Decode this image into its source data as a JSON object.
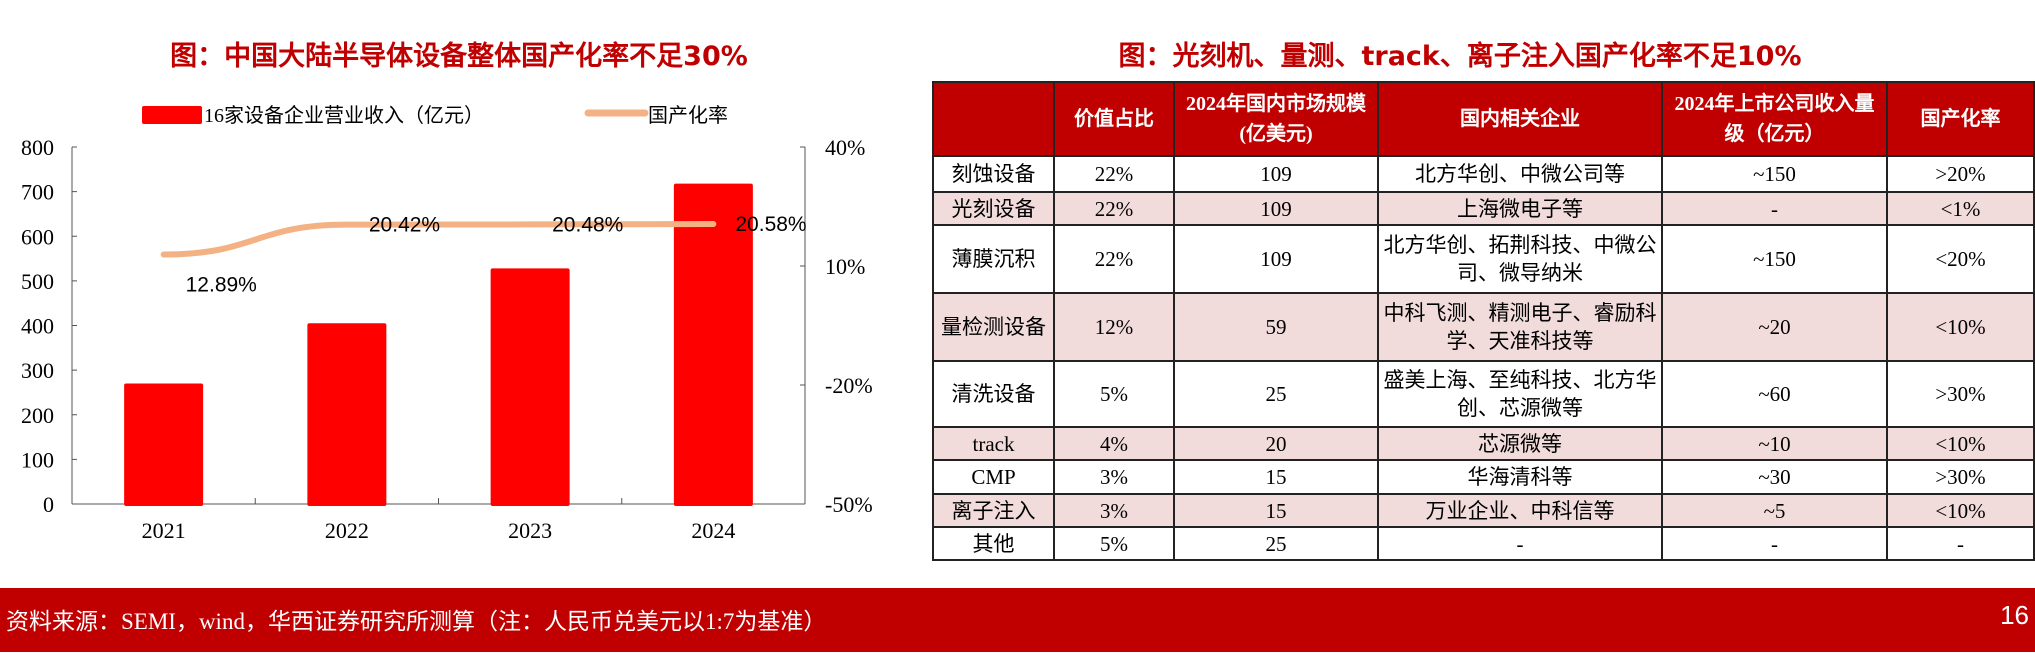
{
  "left": {
    "title": "图：中国大陆半导体设备整体国产化率不足30%"
  },
  "right": {
    "title": "图：光刻机、量测、track、离子注入国产化率不足10%"
  },
  "chart_data": {
    "type": "bar+line",
    "categories": [
      "2021",
      "2022",
      "2023",
      "2024"
    ],
    "series": [
      {
        "name": "16家设备企业营业收入（亿元）",
        "type": "bar",
        "axis": "left",
        "values": [
          270,
          405,
          528,
          718
        ],
        "color": "#ff0000"
      },
      {
        "name": "国产化率",
        "type": "line",
        "axis": "right",
        "values": [
          12.89,
          20.42,
          20.48,
          20.58
        ],
        "labels": [
          "12.89%",
          "20.42%",
          "20.48%",
          "20.58%"
        ],
        "color": "#f4b183"
      }
    ],
    "ylim_left": [
      0,
      800
    ],
    "yticks_left": [
      "0",
      "100",
      "200",
      "300",
      "400",
      "500",
      "600",
      "700",
      "800"
    ],
    "ylim_right": [
      -50,
      40
    ],
    "yticks_right": [
      "-50%",
      "-20%",
      "10%",
      "40%"
    ],
    "legend": "top",
    "grid": false
  },
  "table": {
    "headers": [
      "",
      "价值占比",
      "2024年国内市场规模(亿美元)",
      "国内相关企业",
      "2024年上市公司收入量级（亿元）",
      "国产化率"
    ],
    "rows": [
      [
        "刻蚀设备",
        "22%",
        "109",
        "北方华创、中微公司等",
        "~150",
        ">20%"
      ],
      [
        "光刻设备",
        "22%",
        "109",
        "上海微电子等",
        "-",
        "<1%"
      ],
      [
        "薄膜沉积",
        "22%",
        "109",
        "北方华创、拓荆科技、中微公司、微导纳米",
        "~150",
        "<20%"
      ],
      [
        "量检测设备",
        "12%",
        "59",
        "中科飞测、精测电子、睿励科学、天准科技等",
        "~20",
        "<10%"
      ],
      [
        "清洗设备",
        "5%",
        "25",
        "盛美上海、至纯科技、北方华创、芯源微等",
        "~60",
        ">30%"
      ],
      [
        "track",
        "4%",
        "20",
        "芯源微等",
        "~10",
        "<10%"
      ],
      [
        "CMP",
        "3%",
        "15",
        "华海清科等",
        "~30",
        ">30%"
      ],
      [
        "离子注入",
        "3%",
        "15",
        "万业企业、中科信等",
        "~5",
        "<10%"
      ],
      [
        "其他",
        "5%",
        "25",
        "-",
        "-",
        "-"
      ]
    ]
  },
  "footer": {
    "source": "资料来源：SEMI，wind，华西证券研究所测算（注：人民币兑美元以1:7为基准）",
    "page": "16"
  },
  "colors": {
    "accent": "#c00000",
    "bar": "#ff0000",
    "line": "#f4b183",
    "row_alt": "#f2dcdb"
  }
}
